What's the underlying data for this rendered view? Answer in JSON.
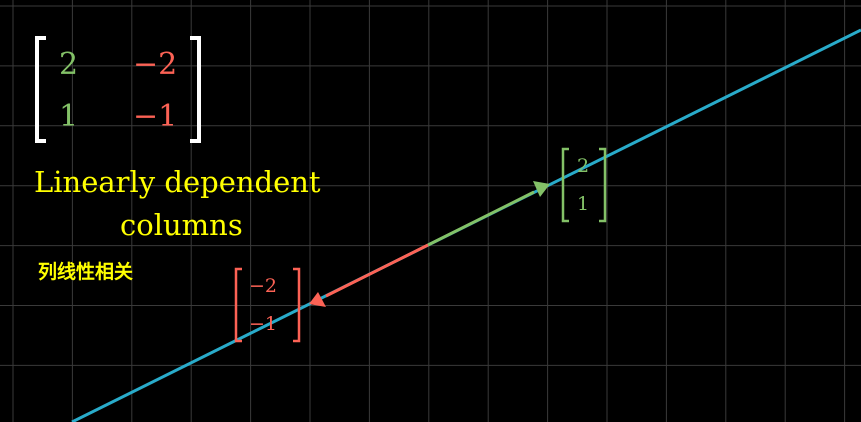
{
  "colors": {
    "background": "#000000",
    "grid": "#3a3a3a",
    "span_line": "#29abca",
    "first_column": "#83c167",
    "second_column": "#fc6255",
    "caption": "#ffff00",
    "bracket": "#ffffff"
  },
  "matrix": {
    "row1": {
      "col1": "2",
      "col2": "−2"
    },
    "row2": {
      "col1": "1",
      "col2": "−1"
    }
  },
  "vector_green": {
    "top": "2",
    "bottom": "1"
  },
  "vector_red": {
    "top": "−2",
    "bottom": "−1"
  },
  "caption": {
    "line1": "Linearly dependent",
    "line2": "columns",
    "chinese": "列线性相关"
  }
}
